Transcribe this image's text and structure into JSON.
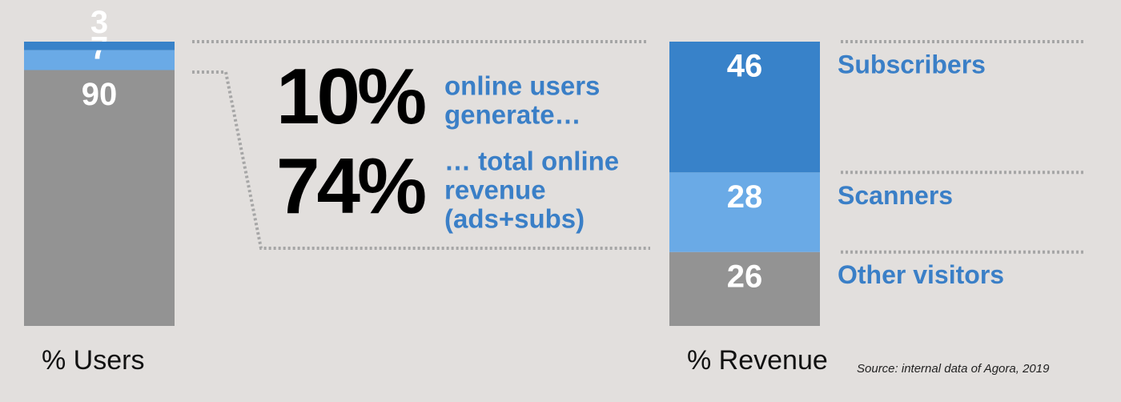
{
  "chart_data": {
    "type": "stacked_bar",
    "categories": [
      "% Users",
      "% Revenue"
    ],
    "series": [
      {
        "name": "Other visitors",
        "color": "#939393",
        "values": [
          90,
          26
        ]
      },
      {
        "name": "Scanners",
        "color": "#6aaae6",
        "values": [
          7,
          28
        ]
      },
      {
        "name": "Subscribers",
        "color": "#3882c9",
        "values": [
          3,
          46
        ]
      }
    ],
    "callouts": [
      {
        "big": "10%",
        "lines": [
          "online users",
          "generate…"
        ]
      },
      {
        "big": "74%",
        "lines": [
          "… total online",
          "revenue",
          "(ads+subs)"
        ]
      }
    ],
    "source": "Source: internal data of Agora, 2019"
  }
}
